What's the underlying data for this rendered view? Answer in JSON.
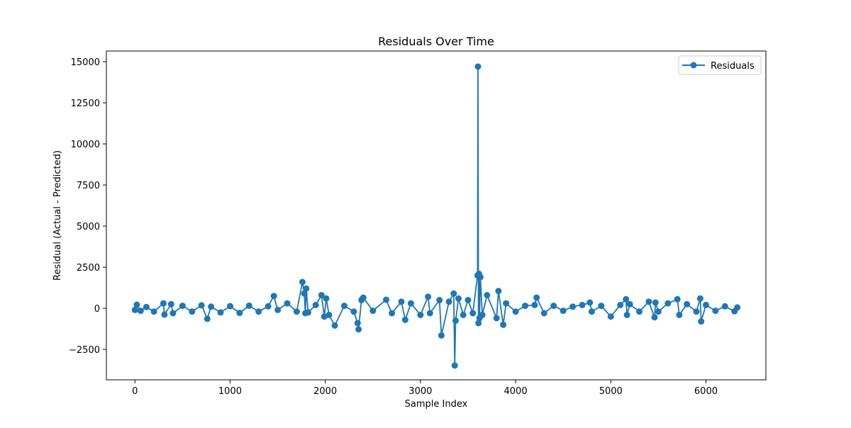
{
  "chart_data": {
    "type": "line",
    "title": "Residuals Over Time",
    "xlabel": "Sample Index",
    "ylabel": "Residual (Actual - Predicted)",
    "xlim": [
      -300,
      6630
    ],
    "ylim": [
      -4350,
      15650
    ],
    "x_ticks": [
      0,
      1000,
      2000,
      3000,
      4000,
      5000,
      6000
    ],
    "x_tick_labels": [
      "0",
      "1000",
      "2000",
      "3000",
      "4000",
      "5000",
      "6000"
    ],
    "y_ticks": [
      -2500,
      0,
      2500,
      5000,
      7500,
      10000,
      12500,
      15000
    ],
    "y_tick_labels": [
      "−2500",
      "0",
      "2500",
      "5000",
      "7500",
      "10000",
      "12500",
      "15000"
    ],
    "grid": false,
    "legend_position": "top-right",
    "marker": "circle",
    "series": [
      {
        "name": "Residuals",
        "color": "#1f77b4",
        "x": [
          0,
          20,
          60,
          120,
          200,
          300,
          310,
          380,
          400,
          500,
          600,
          700,
          760,
          800,
          900,
          1000,
          1100,
          1200,
          1300,
          1400,
          1460,
          1500,
          1600,
          1700,
          1760,
          1780,
          1790,
          1800,
          1820,
          1900,
          1960,
          1990,
          2010,
          2040,
          2100,
          2200,
          2300,
          2340,
          2350,
          2380,
          2400,
          2500,
          2640,
          2700,
          2800,
          2840,
          2900,
          3000,
          3080,
          3100,
          3200,
          3220,
          3300,
          3350,
          3360,
          3370,
          3400,
          3450,
          3500,
          3550,
          3600,
          3605,
          3610,
          3615,
          3620,
          3630,
          3650,
          3700,
          3800,
          3820,
          3870,
          3900,
          4000,
          4100,
          4200,
          4220,
          4300,
          4400,
          4500,
          4600,
          4700,
          4780,
          4800,
          4900,
          5000,
          5100,
          5160,
          5170,
          5200,
          5300,
          5400,
          5460,
          5470,
          5500,
          5600,
          5700,
          5720,
          5800,
          5900,
          5940,
          5950,
          6000,
          6100,
          6200,
          6300,
          6330
        ],
        "y": [
          -100,
          220,
          -150,
          80,
          -200,
          300,
          -380,
          250,
          -300,
          150,
          -200,
          180,
          -640,
          100,
          -250,
          130,
          -280,
          160,
          -200,
          120,
          750,
          -100,
          300,
          -200,
          1600,
          900,
          -300,
          1200,
          -250,
          200,
          800,
          -500,
          600,
          -400,
          -1050,
          150,
          -200,
          -900,
          -1280,
          500,
          650,
          -150,
          520,
          -300,
          400,
          -700,
          300,
          -400,
          700,
          -300,
          500,
          -1650,
          400,
          900,
          -3480,
          -750,
          600,
          -400,
          500,
          -300,
          2000,
          14700,
          -900,
          2100,
          -600,
          1900,
          -400,
          800,
          -600,
          1050,
          -1000,
          300,
          -200,
          150,
          200,
          650,
          -300,
          150,
          -150,
          100,
          200,
          350,
          -200,
          150,
          -500,
          200,
          550,
          -400,
          250,
          -200,
          400,
          -550,
          350,
          -200,
          300,
          550,
          -400,
          250,
          -200,
          600,
          -800,
          200,
          -150,
          120,
          -180,
          50
        ]
      }
    ]
  }
}
